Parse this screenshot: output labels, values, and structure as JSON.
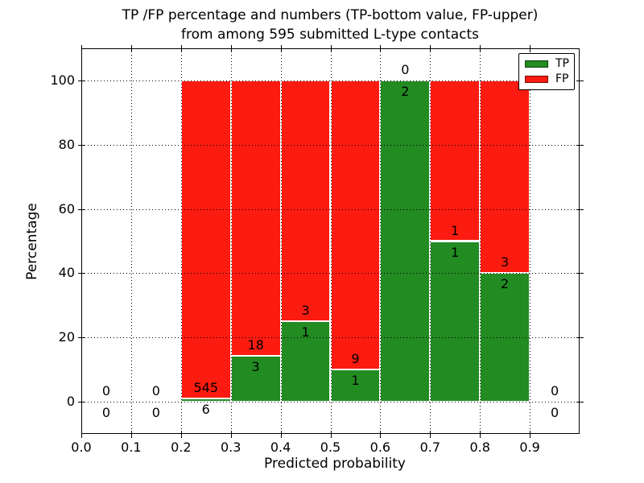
{
  "figure": {
    "title_line1": "TP /FP percentage and numbers (TP-bottom value, FP-upper)",
    "title_line2": "from among 595 submitted L-type contacts"
  },
  "chart_data": {
    "type": "bar",
    "stacked": true,
    "title": "TP /FP percentage and numbers (TP-bottom value, FP-upper)\nfrom among 595 submitted L-type contacts",
    "xlabel": "Predicted probability",
    "ylabel": "Percentage",
    "xlim": [
      0.0,
      1.0
    ],
    "ylim": [
      -10,
      110
    ],
    "xtick_values": [
      0.0,
      0.1,
      0.2,
      0.3,
      0.4,
      0.5,
      0.6,
      0.7,
      0.8,
      0.9
    ],
    "xtick_labels": [
      "0.0",
      "0.1",
      "0.2",
      "0.3",
      "0.4",
      "0.5",
      "0.6",
      "0.7",
      "0.8",
      "0.9"
    ],
    "ytick_values": [
      0,
      20,
      40,
      60,
      80,
      100
    ],
    "ytick_labels": [
      "0",
      "20",
      "40",
      "60",
      "80",
      "100"
    ],
    "grid": {
      "style": "dotted",
      "color": "#000000",
      "on": true
    },
    "series": [
      {
        "name": "TP",
        "color": "#228b22"
      },
      {
        "name": "FP",
        "color": "#fc1b10"
      }
    ],
    "bins": [
      {
        "range": [
          0.0,
          0.1
        ],
        "tp": 0,
        "fp": 0,
        "tp_pct": 0,
        "fp_pct": 0
      },
      {
        "range": [
          0.1,
          0.2
        ],
        "tp": 0,
        "fp": 0,
        "tp_pct": 0,
        "fp_pct": 0
      },
      {
        "range": [
          0.2,
          0.3
        ],
        "tp": 6,
        "fp": 545,
        "tp_pct": 1.09,
        "fp_pct": 98.91
      },
      {
        "range": [
          0.3,
          0.4
        ],
        "tp": 3,
        "fp": 18,
        "tp_pct": 14.29,
        "fp_pct": 85.71
      },
      {
        "range": [
          0.4,
          0.5
        ],
        "tp": 1,
        "fp": 3,
        "tp_pct": 25,
        "fp_pct": 75
      },
      {
        "range": [
          0.5,
          0.6
        ],
        "tp": 1,
        "fp": 9,
        "tp_pct": 10,
        "fp_pct": 90
      },
      {
        "range": [
          0.6,
          0.7
        ],
        "tp": 2,
        "fp": 0,
        "tp_pct": 100,
        "fp_pct": 0
      },
      {
        "range": [
          0.7,
          0.8
        ],
        "tp": 1,
        "fp": 1,
        "tp_pct": 50,
        "fp_pct": 50
      },
      {
        "range": [
          0.8,
          0.9
        ],
        "tp": 2,
        "fp": 3,
        "tp_pct": 40,
        "fp_pct": 60
      },
      {
        "range": [
          0.9,
          1.0
        ],
        "tp": 0,
        "fp": 0,
        "tp_pct": 0,
        "fp_pct": 0
      }
    ],
    "legend": {
      "position": "upper right",
      "entries": [
        {
          "label": "TP",
          "color": "#228b22"
        },
        {
          "label": "FP",
          "color": "#fc1b10"
        }
      ]
    }
  },
  "colors": {
    "tp": "#228b22",
    "fp": "#fc1b10",
    "background": "#ffffff",
    "text": "#000000",
    "grid": "#000000"
  }
}
